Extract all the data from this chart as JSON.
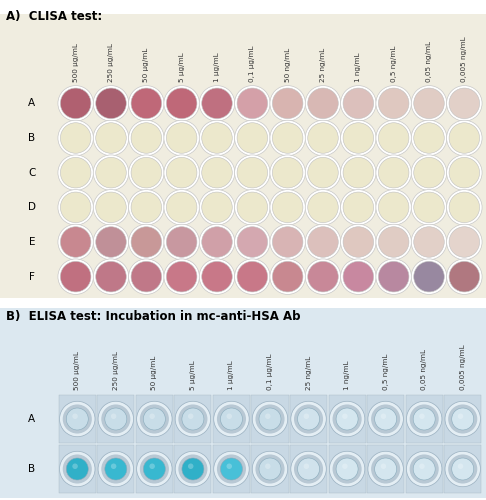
{
  "title_A": "A)  CLISA test:",
  "title_B": "B)  ELISA test: Incubation in mc-anti-HSA Ab",
  "concentrations_A": [
    "500 μg/mL",
    "250 μg/mL",
    "50 μg/mL",
    "5 μg/mL",
    "1 μg/mL",
    "0,1 μg/mL",
    "50 ng/mL",
    "25 ng/mL",
    "1 ng/mL",
    "0,5 ng/mL",
    "0,05 ng/mL",
    "0,005 ng/mL"
  ],
  "concentrations_B": [
    "500 μg/mL",
    "250 μg/mL",
    "50 μg/mL",
    "5 μg/mL",
    "1 μg/mL",
    "0,1 μg/mL",
    "25 ng/mL",
    "1 ng/mL",
    "0,5 ng/mL",
    "0,05 ng/mL",
    "0,005 ng/mL"
  ],
  "row_labels_A": [
    "A",
    "B",
    "C",
    "D",
    "E",
    "F"
  ],
  "row_labels_B": [
    "A",
    "B"
  ],
  "clisa_bg": "#f0ede0",
  "clisa_colors": {
    "A": [
      "#b06070",
      "#a86070",
      "#bf6878",
      "#bf6878",
      "#bf7080",
      "#d4a0a8",
      "#d8b4b0",
      "#d8b8b4",
      "#dcc0bc",
      "#dfc8c0",
      "#e0ccc4",
      "#e2d0c8"
    ],
    "B": [
      "#ece8cc",
      "#ece8cc",
      "#ece8cc",
      "#ece8cc",
      "#ece8cc",
      "#ece8cc",
      "#ece8cc",
      "#ece8cc",
      "#ece8cc",
      "#ece8cc",
      "#ece8cc",
      "#ece8cc"
    ],
    "C": [
      "#ece8cc",
      "#ece8cc",
      "#ece8cc",
      "#ece8cc",
      "#ece8cc",
      "#ece8cc",
      "#ece8cc",
      "#ece8cc",
      "#ece8cc",
      "#ece8cc",
      "#ece8cc",
      "#ece8cc"
    ],
    "D": [
      "#ece8cc",
      "#ece8cc",
      "#ece8cc",
      "#ece8cc",
      "#ece8cc",
      "#ece8cc",
      "#ece8cc",
      "#ece8cc",
      "#ece8cc",
      "#ece8cc",
      "#ece8cc",
      "#ece8cc"
    ],
    "E": [
      "#c88890",
      "#c09098",
      "#c89898",
      "#c898a0",
      "#d0a0a8",
      "#d4a8b0",
      "#d8b4b4",
      "#dcc0bc",
      "#dfc8c0",
      "#e0ccc4",
      "#e2d0c8",
      "#e4d4cc"
    ],
    "F": [
      "#c07080",
      "#bf7888",
      "#c07888",
      "#c87888",
      "#c87888",
      "#c87888",
      "#c88890",
      "#c88898",
      "#c888a0",
      "#b888a0",
      "#9888a0",
      "#b07880"
    ]
  },
  "elisa_A_colors": [
    "#c8dde8",
    "#c8dde8",
    "#c8dde8",
    "#c8dde8",
    "#c8dde8",
    "#c8dde8",
    "#d0e2ec",
    "#d4e6ef",
    "#d4e6ef",
    "#d4e6ef",
    "#d4e6ef"
  ],
  "elisa_B_colors": [
    "#30b0c8",
    "#38b8d0",
    "#38b8d0",
    "#30b0c8",
    "#48c0d8",
    "#c8dde8",
    "#d0e2ec",
    "#d4e6ef",
    "#d4e6ef",
    "#d4e6ef",
    "#d4e6ef"
  ],
  "well_bg_outer": "#d8e4ec",
  "well_ring_light": "#e4eef4",
  "well_ring_dark": "#b8c8d4",
  "elisa_section_bg": "#dce8f0"
}
